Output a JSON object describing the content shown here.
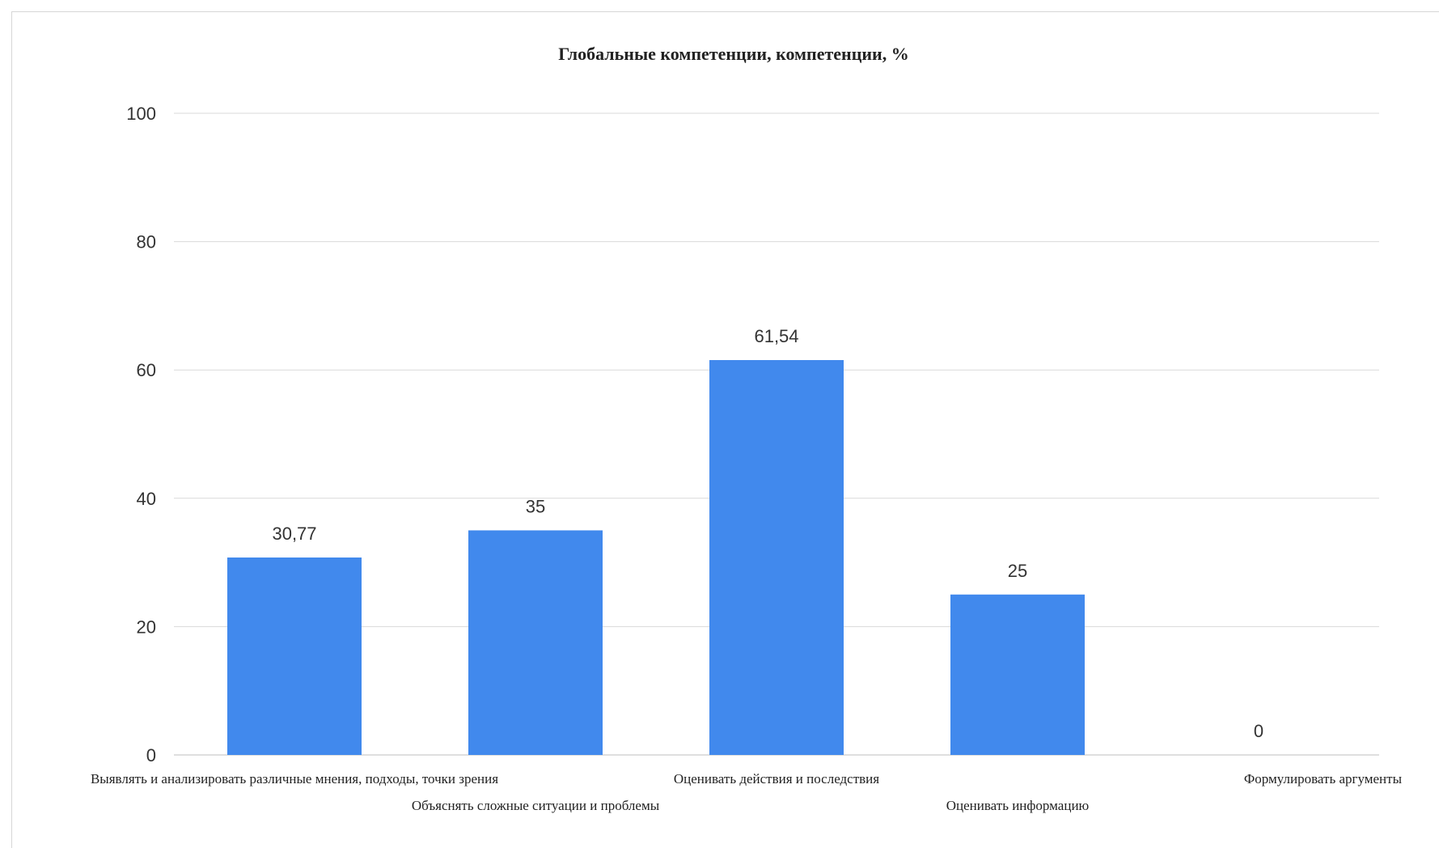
{
  "chart_data": {
    "type": "bar",
    "title": "Глобальные компетенции, компетенции, %",
    "xlabel": "",
    "ylabel": "",
    "categories": [
      "Выявлять и анализировать различные мнения, подходы, точки зрения",
      "Объяснять сложные ситуации и проблемы",
      "Оценивать действия и последствия",
      "Оценивать информацию",
      "Формулировать аргументы"
    ],
    "values": [
      30.77,
      35,
      61.54,
      25,
      0
    ],
    "value_labels": [
      "30,77",
      "35",
      "61,54",
      "25",
      "0"
    ],
    "ylim": [
      0,
      100
    ],
    "yticks": [
      0,
      20,
      40,
      60,
      80,
      100
    ],
    "grid": true,
    "legend": "none",
    "bar_color": "#4189ed"
  }
}
